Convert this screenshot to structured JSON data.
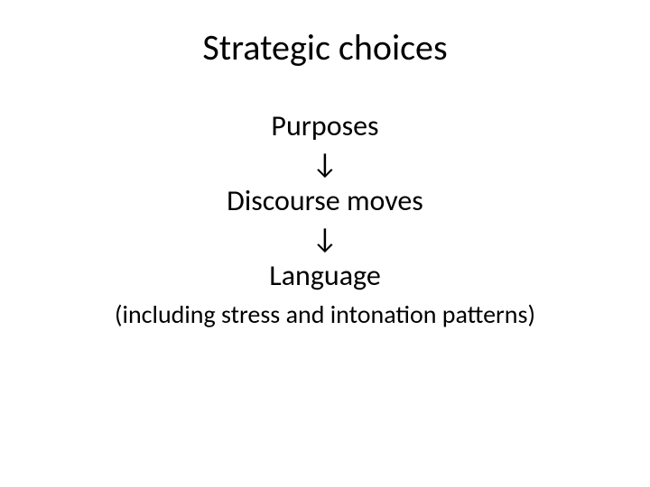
{
  "slide": {
    "title": "Strategic choices",
    "flow": {
      "step1": "Purposes",
      "arrow1": "↓",
      "step2": "Discourse moves",
      "arrow2": "↓",
      "step3": "Language"
    },
    "subtitle": "(including stress and intonation patterns)",
    "background_color": "#ffffff",
    "text_color": "#000000",
    "title_fontsize": 40,
    "body_fontsize": 32,
    "subtitle_fontsize": 28
  }
}
